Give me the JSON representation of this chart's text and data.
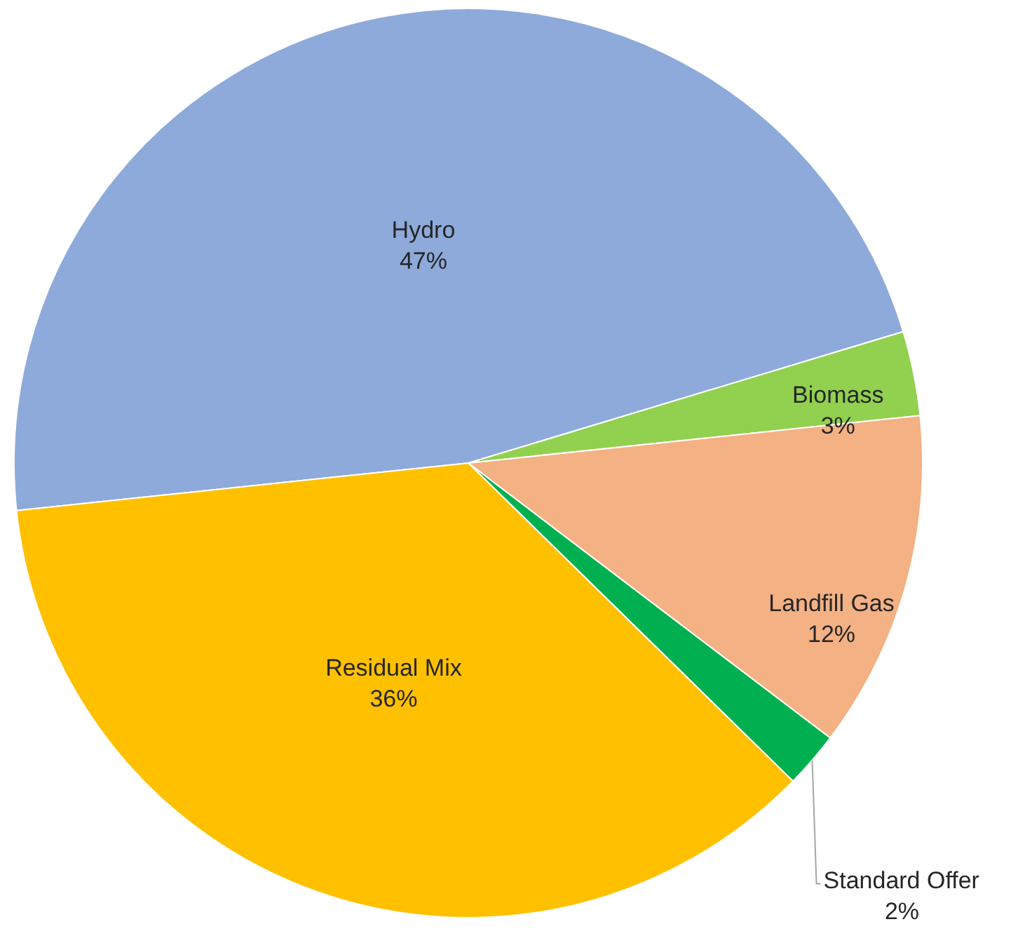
{
  "chart_data": {
    "type": "pie",
    "categories": [
      "Hydro",
      "Biomass",
      "Landfill Gas",
      "Standard Offer",
      "Residual Mix"
    ],
    "values": [
      47,
      3,
      12,
      2,
      36
    ],
    "colors": [
      "#8eaadb",
      "#92d050",
      "#f4b183",
      "#00b050",
      "#ffc000"
    ],
    "value_labels": [
      "47%",
      "3%",
      "12%",
      "2%",
      "36%"
    ]
  }
}
